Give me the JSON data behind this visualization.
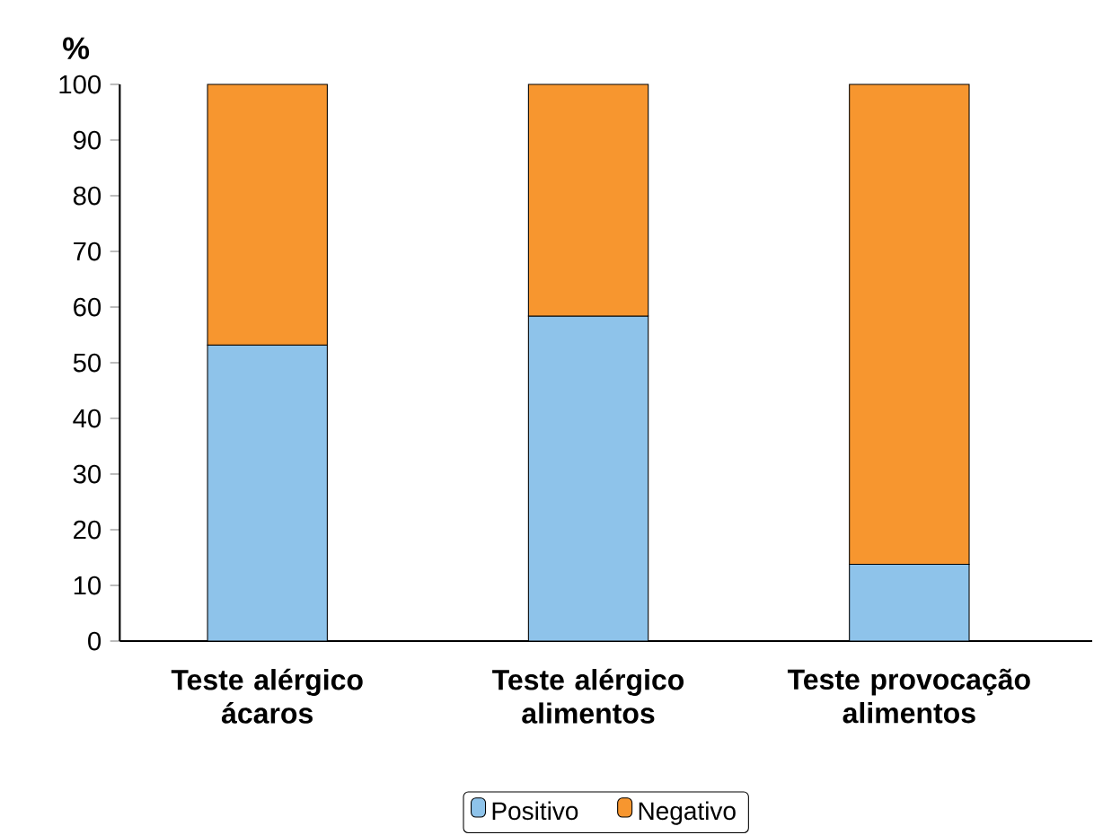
{
  "chart_data": {
    "type": "bar",
    "stacked": true,
    "ylabel": "%",
    "categories": [
      "Teste alérgico ácaros",
      "Teste alérgico alimentos",
      "Teste provocação alimentos"
    ],
    "series": [
      {
        "name": "Positivo",
        "color": "#8ec3ea",
        "values": [
          53.2,
          58.4,
          13.8
        ]
      },
      {
        "name": "Negativo",
        "color": "#f7962f",
        "values": [
          46.8,
          41.6,
          86.2
        ]
      }
    ],
    "ylim": [
      0,
      100
    ],
    "yticks": [
      0,
      10,
      20,
      30,
      40,
      50,
      60,
      70,
      80,
      90,
      100
    ],
    "grid": false,
    "legend": "bottom"
  }
}
